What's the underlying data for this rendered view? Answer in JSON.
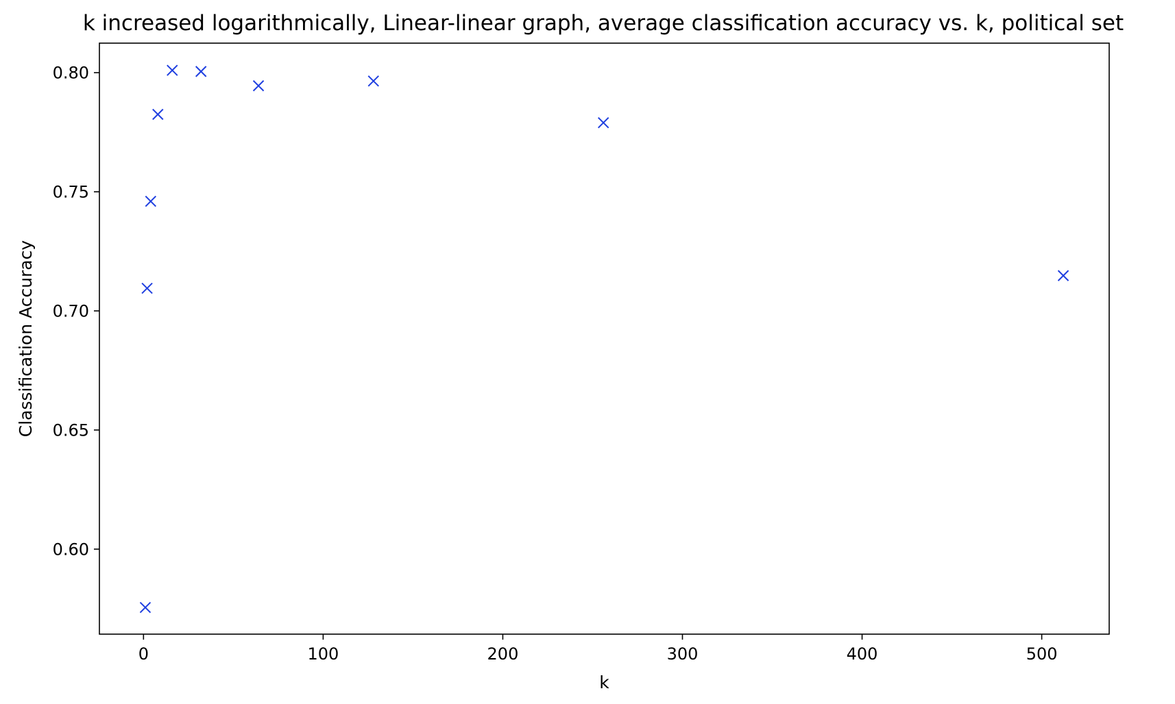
{
  "chart_data": {
    "type": "scatter",
    "title": "k increased logarithmically, Linear-linear graph, average classification accuracy vs. k, political set",
    "xlabel": "k",
    "ylabel": "Classification Accuracy",
    "xlim": [
      -24.55,
      537.55
    ],
    "ylim": [
      0.5643,
      0.8124
    ],
    "xticks": [
      0,
      100,
      200,
      300,
      400,
      500
    ],
    "xtick_labels": [
      "0",
      "100",
      "200",
      "300",
      "400",
      "500"
    ],
    "yticks": [
      0.6,
      0.65,
      0.7,
      0.75,
      0.8
    ],
    "ytick_labels": [
      "0.60",
      "0.65",
      "0.70",
      "0.75",
      "0.80"
    ],
    "grid": false,
    "marker": "x",
    "color": "#1f3fe0",
    "points": [
      {
        "x": 1,
        "y": 0.5755
      },
      {
        "x": 2,
        "y": 0.7095
      },
      {
        "x": 4,
        "y": 0.746
      },
      {
        "x": 8,
        "y": 0.7825
      },
      {
        "x": 16,
        "y": 0.801
      },
      {
        "x": 32,
        "y": 0.8005
      },
      {
        "x": 64,
        "y": 0.7945
      },
      {
        "x": 128,
        "y": 0.7965
      },
      {
        "x": 256,
        "y": 0.779
      },
      {
        "x": 512,
        "y": 0.7148
      }
    ]
  }
}
